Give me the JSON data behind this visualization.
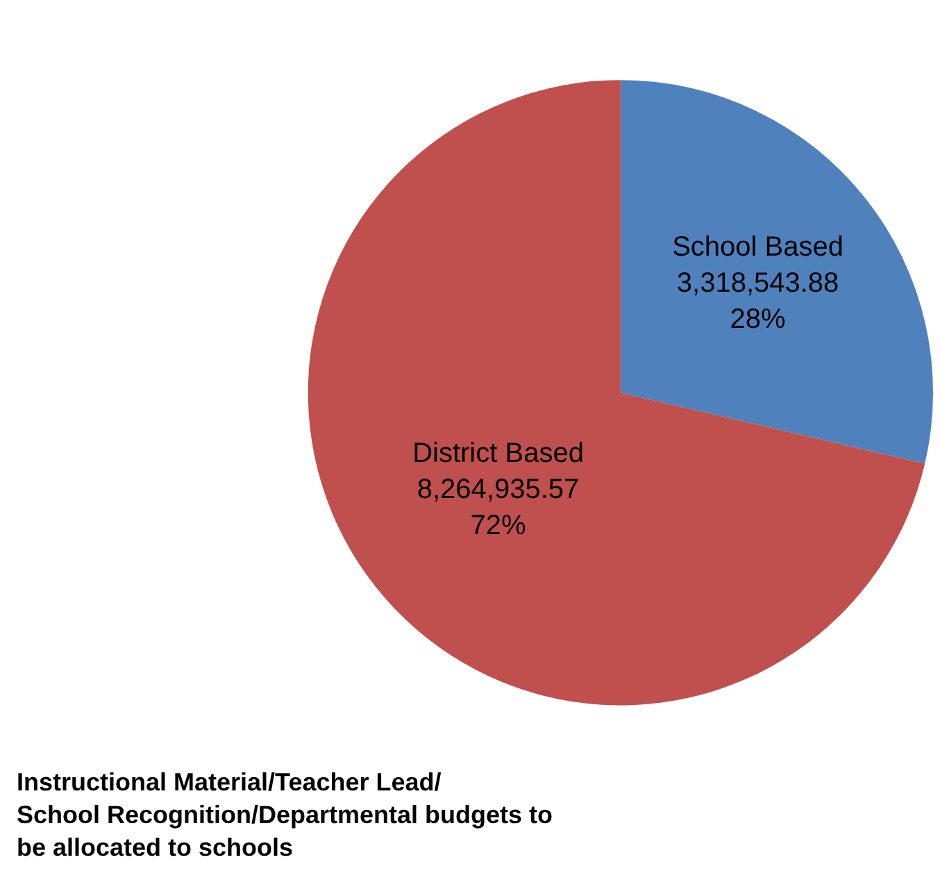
{
  "chart_data": {
    "type": "pie",
    "title": "Instructional Material/Teacher Lead/\nSchool Recognition/Departmental budgets to\nbe allocated to schools",
    "categories": [
      "School Based",
      "District Based"
    ],
    "values": [
      3318543.88,
      8264935.57
    ],
    "colors": [
      "#4f81bd",
      "#c0504d"
    ],
    "value_labels": [
      "3,318,543.88\n28%",
      "8,264,935.57\n72%"
    ],
    "legend": false
  }
}
